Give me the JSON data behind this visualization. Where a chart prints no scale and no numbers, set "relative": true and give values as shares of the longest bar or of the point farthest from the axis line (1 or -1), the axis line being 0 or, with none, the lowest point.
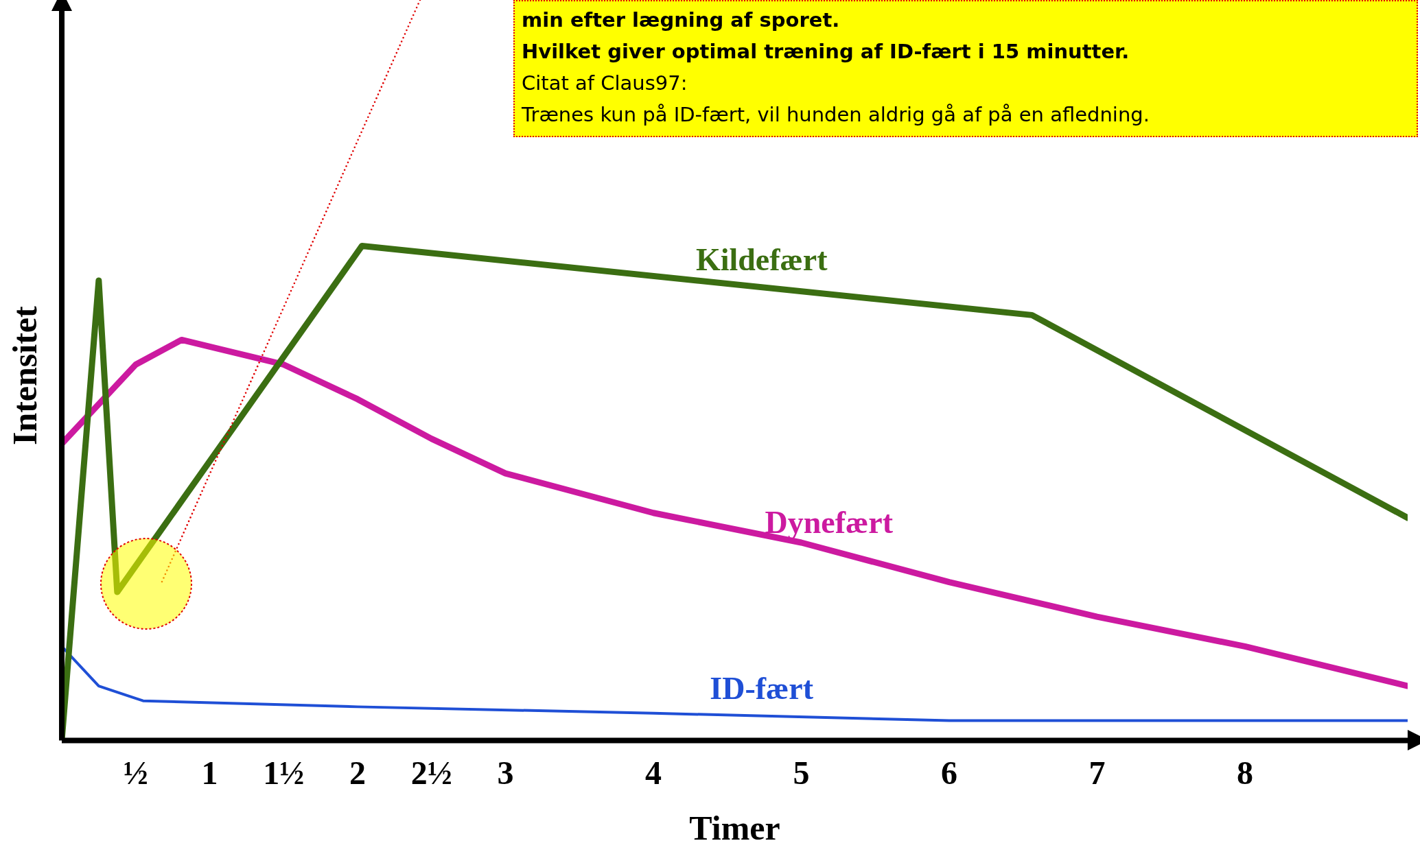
{
  "chart_data": {
    "type": "line",
    "relative": true,
    "xlabel": "Timer",
    "ylabel": "Intensitet",
    "xlim": [
      0,
      9.1
    ],
    "xticks": [
      {
        "value": 0.5,
        "label": "½"
      },
      1,
      {
        "value": 1.5,
        "label": "1½"
      },
      2,
      {
        "value": 2.5,
        "label": "2½"
      },
      3,
      4,
      5,
      6,
      7,
      8
    ],
    "grid": false,
    "legend": false,
    "marker": "none",
    "line_style": "solid",
    "series": [
      {
        "name": "Kildefært",
        "color": "#3b6e12",
        "x": [
          0,
          0.25,
          0.375,
          2.03,
          6.56,
          9.1
        ],
        "values": [
          0,
          0.93,
          0.3,
          1,
          0.86,
          0.45
        ]
      },
      {
        "name": "Dynefært",
        "color": "#cc1aa0",
        "x": [
          0,
          0.5,
          0.81,
          1.5,
          2,
          2.5,
          3,
          4,
          5,
          6,
          7,
          8,
          9.1
        ],
        "values": [
          0.6,
          0.76,
          0.81,
          0.76,
          0.69,
          0.61,
          0.54,
          0.46,
          0.4,
          0.32,
          0.25,
          0.19,
          0.11
        ]
      },
      {
        "name": "ID-fært",
        "color": "#1f4fd6",
        "x": [
          0,
          0.25,
          0.55,
          2,
          4,
          6,
          9.1
        ],
        "values": [
          0.19,
          0.11,
          0.08,
          0.068,
          0.055,
          0.04,
          0.04
        ]
      }
    ],
    "annotations": [
      "min efter lægning af sporet.\nHvilket giver optimal træning af ID-fært i 15 minutter.\nCitat af Claus97:\nTrænes kun på ID-fært, vil hunden aldrig gå af på en afledning."
    ]
  }
}
